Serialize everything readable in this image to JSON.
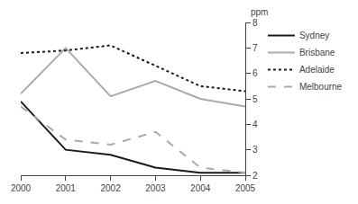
{
  "chart_data": {
    "type": "line",
    "ylabel": "ppm",
    "x": [
      2000,
      2001,
      2002,
      2003,
      2004,
      2005
    ],
    "series": [
      {
        "name": "Sydney",
        "color": "#1a1a1a",
        "line_style": "solid",
        "values": [
          4.9,
          3.0,
          2.8,
          2.3,
          2.1,
          2.1
        ]
      },
      {
        "name": "Brisbane",
        "color": "#aaaaaa",
        "line_style": "solid",
        "values": [
          5.2,
          7.0,
          5.1,
          5.7,
          5.0,
          4.7
        ]
      },
      {
        "name": "Adelaide",
        "color": "#1a1a1a",
        "line_style": "dotted",
        "values": [
          6.8,
          6.9,
          7.1,
          6.3,
          5.5,
          5.3
        ]
      },
      {
        "name": "Melbourne",
        "color": "#aaaaaa",
        "line_style": "dashed",
        "values": [
          4.7,
          3.4,
          3.2,
          3.7,
          2.3,
          2.1
        ]
      }
    ],
    "xlim": [
      2000,
      2005
    ],
    "xticks": [
      2000,
      2001,
      2002,
      2003,
      2004,
      2005
    ],
    "ylim": [
      2,
      8
    ],
    "yticks": [
      2,
      3,
      4,
      5,
      6,
      7,
      8
    ],
    "grid": false,
    "legend": "upper right"
  }
}
